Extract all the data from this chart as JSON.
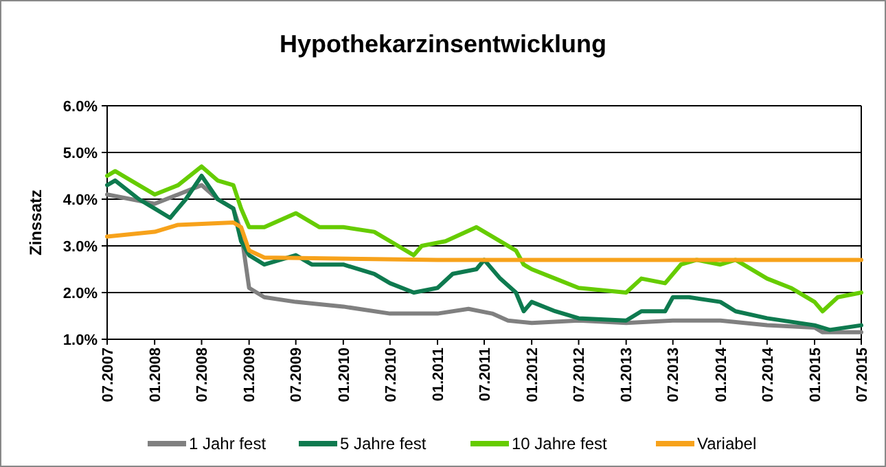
{
  "chart_data": {
    "type": "line",
    "title": "Hypothekarzinsentwicklung",
    "ylabel": "Zinssatz",
    "xlim": [
      "2007-07",
      "2015-07"
    ],
    "xticks": [
      {
        "value": "2007-07",
        "label": "07.2007"
      },
      {
        "value": "2008-01",
        "label": "01.2008"
      },
      {
        "value": "2008-07",
        "label": "07.2008"
      },
      {
        "value": "2009-01",
        "label": "01.2009"
      },
      {
        "value": "2009-07",
        "label": "07.2009"
      },
      {
        "value": "2010-01",
        "label": "01.2010"
      },
      {
        "value": "2010-07",
        "label": "07.2010"
      },
      {
        "value": "2011-01",
        "label": "01.2011"
      },
      {
        "value": "2011-07",
        "label": "07.2011"
      },
      {
        "value": "2012-01",
        "label": "01.2012"
      },
      {
        "value": "2012-07",
        "label": "07.2012"
      },
      {
        "value": "2013-01",
        "label": "01.2013"
      },
      {
        "value": "2013-07",
        "label": "07.2013"
      },
      {
        "value": "2014-01",
        "label": "01.2014"
      },
      {
        "value": "2014-07",
        "label": "07.2014"
      },
      {
        "value": "2015-01",
        "label": "01.2015"
      },
      {
        "value": "2015-07",
        "label": "07.2015"
      }
    ],
    "ylim": [
      1,
      6
    ],
    "yticks": [
      {
        "value": 1,
        "label": "1.0%"
      },
      {
        "value": 2,
        "label": "2.0%"
      },
      {
        "value": 3,
        "label": "3.0%"
      },
      {
        "value": 4,
        "label": "4.0%"
      },
      {
        "value": 5,
        "label": "5.0%"
      },
      {
        "value": 6,
        "label": "6.0%"
      }
    ],
    "grid": "y",
    "legend": "bottom",
    "line_style": "solid",
    "marker": "none",
    "series": [
      {
        "name": "1 Jahr fest",
        "color": "#808080",
        "x": [
          "2007-07",
          "2007-10",
          "2008-01",
          "2008-04",
          "2008-07",
          "2008-09",
          "2008-11",
          "2008-12",
          "2009-01",
          "2009-03",
          "2009-07",
          "2010-01",
          "2010-07",
          "2011-01",
          "2011-05",
          "2011-08",
          "2011-10",
          "2012-01",
          "2012-07",
          "2013-01",
          "2013-07",
          "2014-01",
          "2014-07",
          "2015-01",
          "2015-02",
          "2015-07"
        ],
        "values": [
          4.1,
          4.0,
          3.9,
          4.1,
          4.3,
          4.0,
          3.8,
          3.3,
          2.1,
          1.9,
          1.8,
          1.7,
          1.55,
          1.55,
          1.65,
          1.55,
          1.4,
          1.35,
          1.4,
          1.35,
          1.4,
          1.4,
          1.3,
          1.25,
          1.15,
          1.15
        ]
      },
      {
        "name": "5 Jahre fest",
        "color": "#0e7a4f",
        "x": [
          "2007-07",
          "2007-08",
          "2007-11",
          "2008-01",
          "2008-03",
          "2008-05",
          "2008-07",
          "2008-09",
          "2008-11",
          "2008-12",
          "2009-01",
          "2009-03",
          "2009-05",
          "2009-07",
          "2009-09",
          "2010-01",
          "2010-05",
          "2010-07",
          "2010-10",
          "2011-01",
          "2011-03",
          "2011-06",
          "2011-07",
          "2011-09",
          "2011-11",
          "2011-12",
          "2012-01",
          "2012-04",
          "2012-07",
          "2013-01",
          "2013-03",
          "2013-06",
          "2013-07",
          "2013-09",
          "2014-01",
          "2014-03",
          "2014-07",
          "2015-01",
          "2015-03",
          "2015-07"
        ],
        "values": [
          4.3,
          4.4,
          4.0,
          3.8,
          3.6,
          4.0,
          4.5,
          4.0,
          3.8,
          3.1,
          2.8,
          2.6,
          2.7,
          2.8,
          2.6,
          2.6,
          2.4,
          2.2,
          2.0,
          2.1,
          2.4,
          2.5,
          2.7,
          2.3,
          2.0,
          1.6,
          1.8,
          1.6,
          1.45,
          1.4,
          1.6,
          1.6,
          1.9,
          1.9,
          1.8,
          1.6,
          1.45,
          1.3,
          1.2,
          1.3
        ]
      },
      {
        "name": "10 Jahre fest",
        "color": "#66cc00",
        "x": [
          "2007-07",
          "2007-08",
          "2007-11",
          "2008-01",
          "2008-04",
          "2008-07",
          "2008-09",
          "2008-11",
          "2008-12",
          "2009-01",
          "2009-03",
          "2009-07",
          "2009-10",
          "2010-01",
          "2010-05",
          "2010-08",
          "2010-10",
          "2010-11",
          "2011-02",
          "2011-06",
          "2011-08",
          "2011-11",
          "2011-12",
          "2012-01",
          "2012-04",
          "2012-07",
          "2013-01",
          "2013-03",
          "2013-06",
          "2013-08",
          "2013-10",
          "2014-01",
          "2014-03",
          "2014-07",
          "2014-10",
          "2015-01",
          "2015-02",
          "2015-04",
          "2015-07"
        ],
        "values": [
          4.5,
          4.6,
          4.3,
          4.1,
          4.3,
          4.7,
          4.4,
          4.3,
          3.8,
          3.4,
          3.4,
          3.7,
          3.4,
          3.4,
          3.3,
          3.0,
          2.8,
          3.0,
          3.1,
          3.4,
          3.2,
          2.9,
          2.6,
          2.5,
          2.3,
          2.1,
          2.0,
          2.3,
          2.2,
          2.6,
          2.7,
          2.6,
          2.7,
          2.3,
          2.1,
          1.8,
          1.6,
          1.9,
          2.0
        ]
      },
      {
        "name": "Variabel",
        "color": "#f7a21b",
        "x": [
          "2007-07",
          "2007-10",
          "2008-01",
          "2008-04",
          "2008-11",
          "2008-12",
          "2009-01",
          "2009-03",
          "2011-01",
          "2015-07"
        ],
        "values": [
          3.2,
          3.25,
          3.3,
          3.45,
          3.5,
          3.4,
          2.9,
          2.75,
          2.7,
          2.7
        ]
      }
    ]
  }
}
